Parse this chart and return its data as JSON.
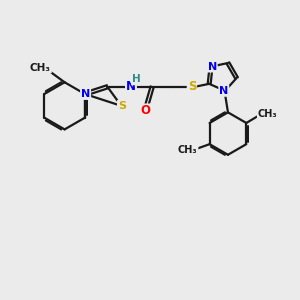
{
  "bg_color": "#ebebeb",
  "bond_color": "#1a1a1a",
  "bond_width": 1.6,
  "N_color": "#0000ee",
  "S_color": "#ccaa00",
  "O_color": "#ff0000",
  "H_color": "#2e8b8b",
  "figsize": [
    3.0,
    3.0
  ],
  "dpi": 100,
  "xlim": [
    0,
    10
  ],
  "ylim": [
    0,
    10
  ]
}
